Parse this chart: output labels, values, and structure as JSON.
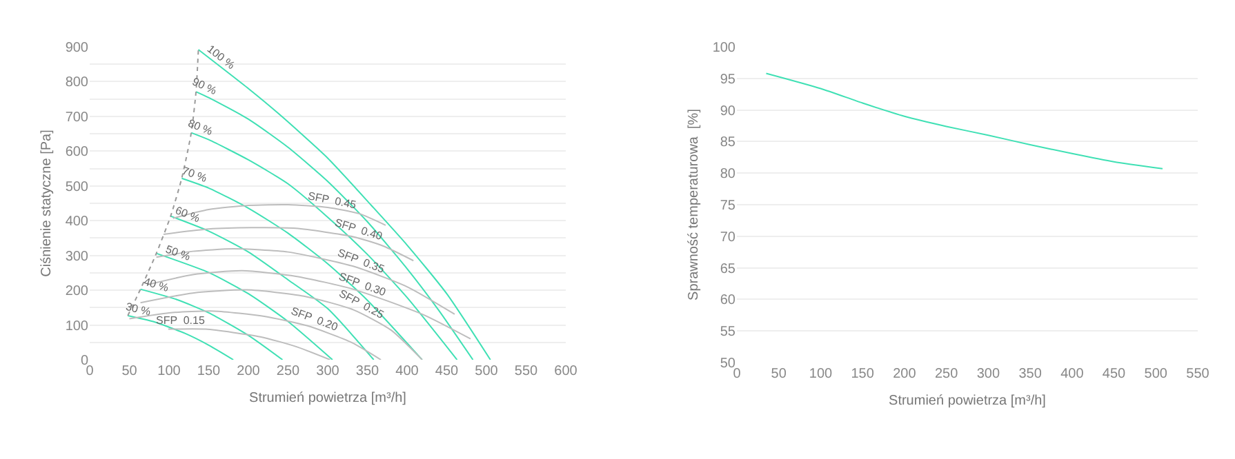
{
  "chart_data": [
    {
      "type": "line",
      "xlabel": "Strumień powietrza [m³/h]",
      "ylabel": "Ciśnienie statyczne [Pa]",
      "xlim": [
        0,
        600
      ],
      "xticks": [
        0,
        50,
        100,
        150,
        200,
        250,
        300,
        350,
        400,
        450,
        500,
        550,
        600
      ],
      "ylim": [
        0,
        900
      ],
      "yticks": [
        0,
        {
          "value": 50,
          "label": null
        },
        100,
        {
          "value": 150,
          "label": null
        },
        200,
        {
          "value": 250,
          "label": null
        },
        300,
        {
          "value": 350,
          "label": null
        },
        400,
        {
          "value": 450,
          "label": null
        },
        500,
        {
          "value": 550,
          "label": null
        },
        600,
        {
          "value": 650,
          "label": null
        },
        700,
        {
          "value": 750,
          "label": null
        },
        800,
        {
          "value": 850,
          "label": null
        },
        900
      ],
      "grid": "y",
      "legend": false,
      "series": [
        {
          "name": "100 %",
          "color": "#3fe0b4",
          "x": [
            137,
            200,
            239,
            300,
            355,
            400,
            450,
            505
          ],
          "values": [
            892,
            780,
            706,
            580,
            444,
            330,
            190,
            0
          ]
        },
        {
          "name": "90 %",
          "color": "#3fe0b4",
          "x": [
            134,
            150,
            200,
            250,
            300,
            350,
            400,
            440,
            483
          ],
          "values": [
            771,
            754,
            692,
            611,
            513,
            397,
            262,
            142,
            0
          ]
        },
        {
          "name": "80 %",
          "color": "#3fe0b4",
          "x": [
            128,
            150,
            200,
            250,
            300,
            350,
            400,
            463
          ],
          "values": [
            653,
            633,
            575,
            506,
            410,
            303,
            179,
            0
          ]
        },
        {
          "name": "70 %",
          "color": "#3fe0b4",
          "x": [
            116,
            150,
            200,
            250,
            300,
            350,
            419
          ],
          "values": [
            522,
            494,
            436,
            364,
            276,
            171,
            0
          ]
        },
        {
          "name": "60 %",
          "color": "#3fe0b4",
          "x": [
            102,
            150,
            200,
            250,
            300,
            358
          ],
          "values": [
            413,
            370,
            310,
            230,
            147,
            0
          ]
        },
        {
          "name": "50 %",
          "color": "#3fe0b4",
          "x": [
            84,
            150,
            200,
            250,
            306
          ],
          "values": [
            306,
            251,
            190,
            110,
            0
          ]
        },
        {
          "name": "40 %",
          "color": "#3fe0b4",
          "x": [
            64,
            110,
            150,
            200,
            243
          ],
          "values": [
            203,
            173,
            135,
            70,
            0
          ]
        },
        {
          "name": "30 %",
          "color": "#3fe0b4",
          "x": [
            48,
            80,
            120,
            150,
            181
          ],
          "values": [
            127,
            110,
            76,
            42,
            0
          ]
        },
        {
          "name": "SFP  0.45",
          "color": "#bdbdbd",
          "x": [
            105,
            150,
            200,
            250,
            300,
            340,
            373
          ],
          "values": [
            407,
            432,
            444,
            446,
            438,
            420,
            387
          ]
        },
        {
          "name": "SFP  0.40",
          "color": "#bdbdbd",
          "x": [
            93,
            150,
            204,
            260,
            332,
            370,
            408
          ],
          "values": [
            361,
            376,
            380,
            378,
            354,
            327,
            285
          ]
        },
        {
          "name": "SFP  0.35",
          "color": "#bdbdbd",
          "x": [
            84,
            130,
            181,
            250,
            332,
            400,
            460
          ],
          "values": [
            295,
            312,
            319,
            310,
            269,
            210,
            131
          ]
        },
        {
          "name": "SFP  0.30",
          "color": "#bdbdbd",
          "x": [
            73,
            130,
            192,
            260,
            332,
            420,
            480
          ],
          "values": [
            216,
            245,
            256,
            240,
            203,
            130,
            60
          ]
        },
        {
          "name": "SFP  0.25",
          "color": "#bdbdbd",
          "x": [
            64,
            130,
            198,
            270,
            332,
            380,
            419
          ],
          "values": [
            164,
            192,
            201,
            183,
            144,
            85,
            0
          ]
        },
        {
          "name": "SFP  0.20",
          "color": "#bdbdbd",
          "x": [
            50,
            100,
            157,
            220,
            274,
            330,
            367
          ],
          "values": [
            118,
            135,
            140,
            125,
            98,
            50,
            0
          ]
        },
        {
          "name": "SFP  0.15",
          "color": "#bdbdbd",
          "x": [
            99,
            146,
            215,
            260,
            303
          ],
          "values": [
            88,
            88,
            66,
            38,
            0
          ]
        },
        {
          "color": "#9a9a9a",
          "line_style": "dotted",
          "x": [
            48,
            64,
            84,
            102,
            116,
            128,
            134,
            137
          ],
          "values": [
            127,
            203,
            306,
            413,
            522,
            653,
            771,
            892
          ]
        }
      ]
    },
    {
      "type": "line",
      "xlabel": "Strumień powietrza [m³/h]",
      "ylabel": "Sprawność temperaturowa  [%]",
      "xlim": [
        0,
        550
      ],
      "xticks": [
        0,
        50,
        100,
        150,
        200,
        250,
        300,
        350,
        400,
        450,
        500,
        550
      ],
      "ylim": [
        50,
        100
      ],
      "yticks": [
        50,
        55,
        60,
        65,
        70,
        75,
        80,
        85,
        90,
        95,
        100
      ],
      "grid": "y",
      "legend": false,
      "series": [
        {
          "color": "#3fe0b4",
          "x": [
            35,
            100,
            150,
            200,
            250,
            300,
            350,
            400,
            450,
            508
          ],
          "values": [
            95.8,
            93.4,
            91.1,
            89.0,
            87.4,
            86.0,
            84.5,
            83.1,
            81.8,
            80.7
          ]
        }
      ]
    }
  ]
}
